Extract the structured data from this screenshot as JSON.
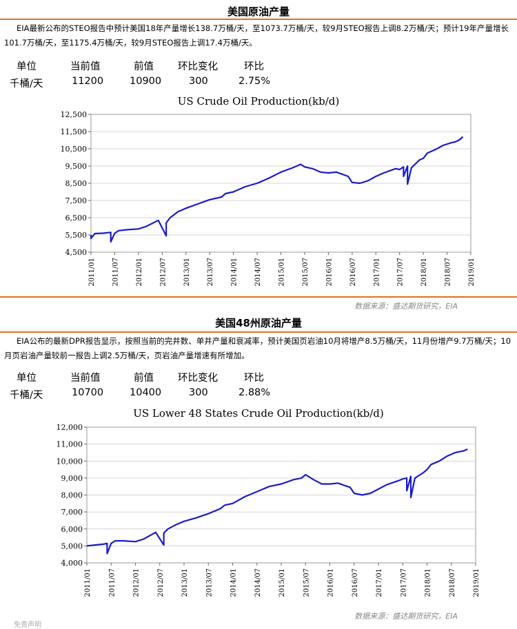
{
  "section1": {
    "title": "美国原油产量",
    "description": "EIA最新公布的STEO报告中预计美国18年产量增长138.7万桶/天，至1073.7万桶/天，较9月STEO报告上调8.2万桶/天；预计19年产量增长101.7万桶/天，至1175.4万桶/天，较9月STEO报告上调17.4万桶/天。",
    "table": {
      "headers": [
        "单位",
        "当前值",
        "前值",
        "环比变化",
        "环比"
      ],
      "row": [
        "千桶/天",
        "11200",
        "10900",
        "300",
        "2.75%"
      ]
    },
    "source": "数据来源：盛达期货研究，EIA"
  },
  "section2": {
    "title": "美国48州原油产量",
    "description": "EIA公布的最新DPR报告显示，按照当前的完井数、单井产量和衰减率，预计美国页岩油10月将增产8.5万桶/天，11月份增产9.7万桶/天；10月页岩油产量较前一报告上调2.5万桶/天，页岩油产量增速有所增加。",
    "table": {
      "headers": [
        "单位",
        "当前值",
        "前值",
        "环比变化",
        "环比"
      ],
      "row": [
        "千桶/天",
        "10700",
        "10400",
        "300",
        "2.88%"
      ]
    },
    "source": "数据来源：盛达期货研究，EIA"
  },
  "footer_text": "免责声明",
  "colors": {
    "accent_rule": "#e07020",
    "series": "#1a1acc",
    "grid": "#c8c8c8"
  },
  "chart_data": [
    {
      "type": "line",
      "title": "US Crude Oil Production(kb/d)",
      "xlabel": "",
      "ylabel": "",
      "ylim": [
        4500,
        12500
      ],
      "yticks": [
        "4,500",
        "5,500",
        "6,500",
        "7,500",
        "8,500",
        "9,500",
        "10,500",
        "11,500",
        "12,500"
      ],
      "xticks": [
        "2011/01",
        "2011/07",
        "2012/01",
        "2012/07",
        "2013/01",
        "2013/07",
        "2014/01",
        "2014/07",
        "2015/01",
        "2015/07",
        "2016/01",
        "2016/07",
        "2017/01",
        "2017/07",
        "2018/01",
        "2018/07",
        "2019/01"
      ],
      "grid": "horizontal",
      "series": [
        {
          "x": [
            "2011/01",
            "2011/01",
            "2011/02",
            "2011/04",
            "2011/06",
            "2011/06",
            "2011/07",
            "2011/08",
            "2011/10",
            "2012/01",
            "2012/03",
            "2012/06",
            "2012/08",
            "2012/08",
            "2012/09",
            "2012/11",
            "2013/01",
            "2013/04",
            "2013/07",
            "2013/10",
            "2013/11",
            "2014/01",
            "2014/04",
            "2014/07",
            "2014/10",
            "2015/01",
            "2015/04",
            "2015/06",
            "2015/07",
            "2015/09",
            "2015/11",
            "2016/01",
            "2016/03",
            "2016/06",
            "2016/07",
            "2016/09",
            "2016/11",
            "2017/01",
            "2017/03",
            "2017/06",
            "2017/07",
            "2017/08",
            "2017/08",
            "2017/09",
            "2017/09",
            "2017/10",
            "2017/12",
            "2018/01",
            "2018/02",
            "2018/04",
            "2018/06",
            "2018/08",
            "2018/09",
            "2018/10",
            "2018/11"
          ],
          "y": [
            5500,
            5300,
            5580,
            5600,
            5650,
            5100,
            5600,
            5750,
            5800,
            5850,
            6000,
            6350,
            5450,
            6200,
            6500,
            6850,
            7050,
            7300,
            7550,
            7700,
            7900,
            8000,
            8300,
            8500,
            8800,
            9150,
            9400,
            9600,
            9450,
            9350,
            9150,
            9100,
            9150,
            8900,
            8550,
            8500,
            8650,
            8900,
            9100,
            9350,
            9300,
            9450,
            8900,
            9500,
            8450,
            9400,
            9850,
            9950,
            10250,
            10450,
            10700,
            10850,
            10900,
            11000,
            11200
          ]
        }
      ]
    },
    {
      "type": "line",
      "title": "US Lower 48 States Crude Oil Production(kb/d)",
      "xlabel": "",
      "ylabel": "",
      "ylim": [
        4000,
        12000
      ],
      "yticks": [
        "4,000",
        "5,000",
        "6,000",
        "7,000",
        "8,000",
        "9,000",
        "10,000",
        "11,000",
        "12,000"
      ],
      "xticks": [
        "2011/01",
        "2011/07",
        "2012/01",
        "2012/07",
        "2013/01",
        "2013/07",
        "2014/01",
        "2014/07",
        "2015/01",
        "2015/07",
        "2016/01",
        "2016/07",
        "2017/01",
        "2017/07",
        "2018/01",
        "2018/07",
        "2019/01"
      ],
      "grid": "horizontal",
      "series": [
        {
          "x": [
            "2011/01",
            "2011/03",
            "2011/05",
            "2011/06",
            "2011/06",
            "2011/07",
            "2011/08",
            "2011/10",
            "2012/01",
            "2012/03",
            "2012/06",
            "2012/08",
            "2012/08",
            "2012/09",
            "2012/11",
            "2013/01",
            "2013/04",
            "2013/07",
            "2013/10",
            "2013/11",
            "2014/01",
            "2014/04",
            "2014/07",
            "2014/10",
            "2015/01",
            "2015/04",
            "2015/06",
            "2015/07",
            "2015/09",
            "2015/11",
            "2016/01",
            "2016/03",
            "2016/06",
            "2016/07",
            "2016/09",
            "2016/11",
            "2017/01",
            "2017/03",
            "2017/06",
            "2017/07",
            "2017/08",
            "2017/08",
            "2017/09",
            "2017/09",
            "2017/10",
            "2017/12",
            "2018/01",
            "2018/02",
            "2018/04",
            "2018/06",
            "2018/08",
            "2018/09",
            "2018/10",
            "2018/11"
          ],
          "y": [
            5000,
            5050,
            5100,
            5150,
            4550,
            5150,
            5300,
            5300,
            5250,
            5400,
            5800,
            5050,
            5750,
            6000,
            6250,
            6450,
            6650,
            6900,
            7200,
            7400,
            7500,
            7900,
            8200,
            8500,
            8650,
            8900,
            9000,
            9200,
            8900,
            8650,
            8650,
            8700,
            8450,
            8100,
            8000,
            8100,
            8350,
            8600,
            8850,
            8950,
            9000,
            8250,
            9100,
            7850,
            9000,
            9300,
            9500,
            9800,
            10000,
            10300,
            10500,
            10550,
            10600,
            10700
          ]
        }
      ]
    }
  ]
}
